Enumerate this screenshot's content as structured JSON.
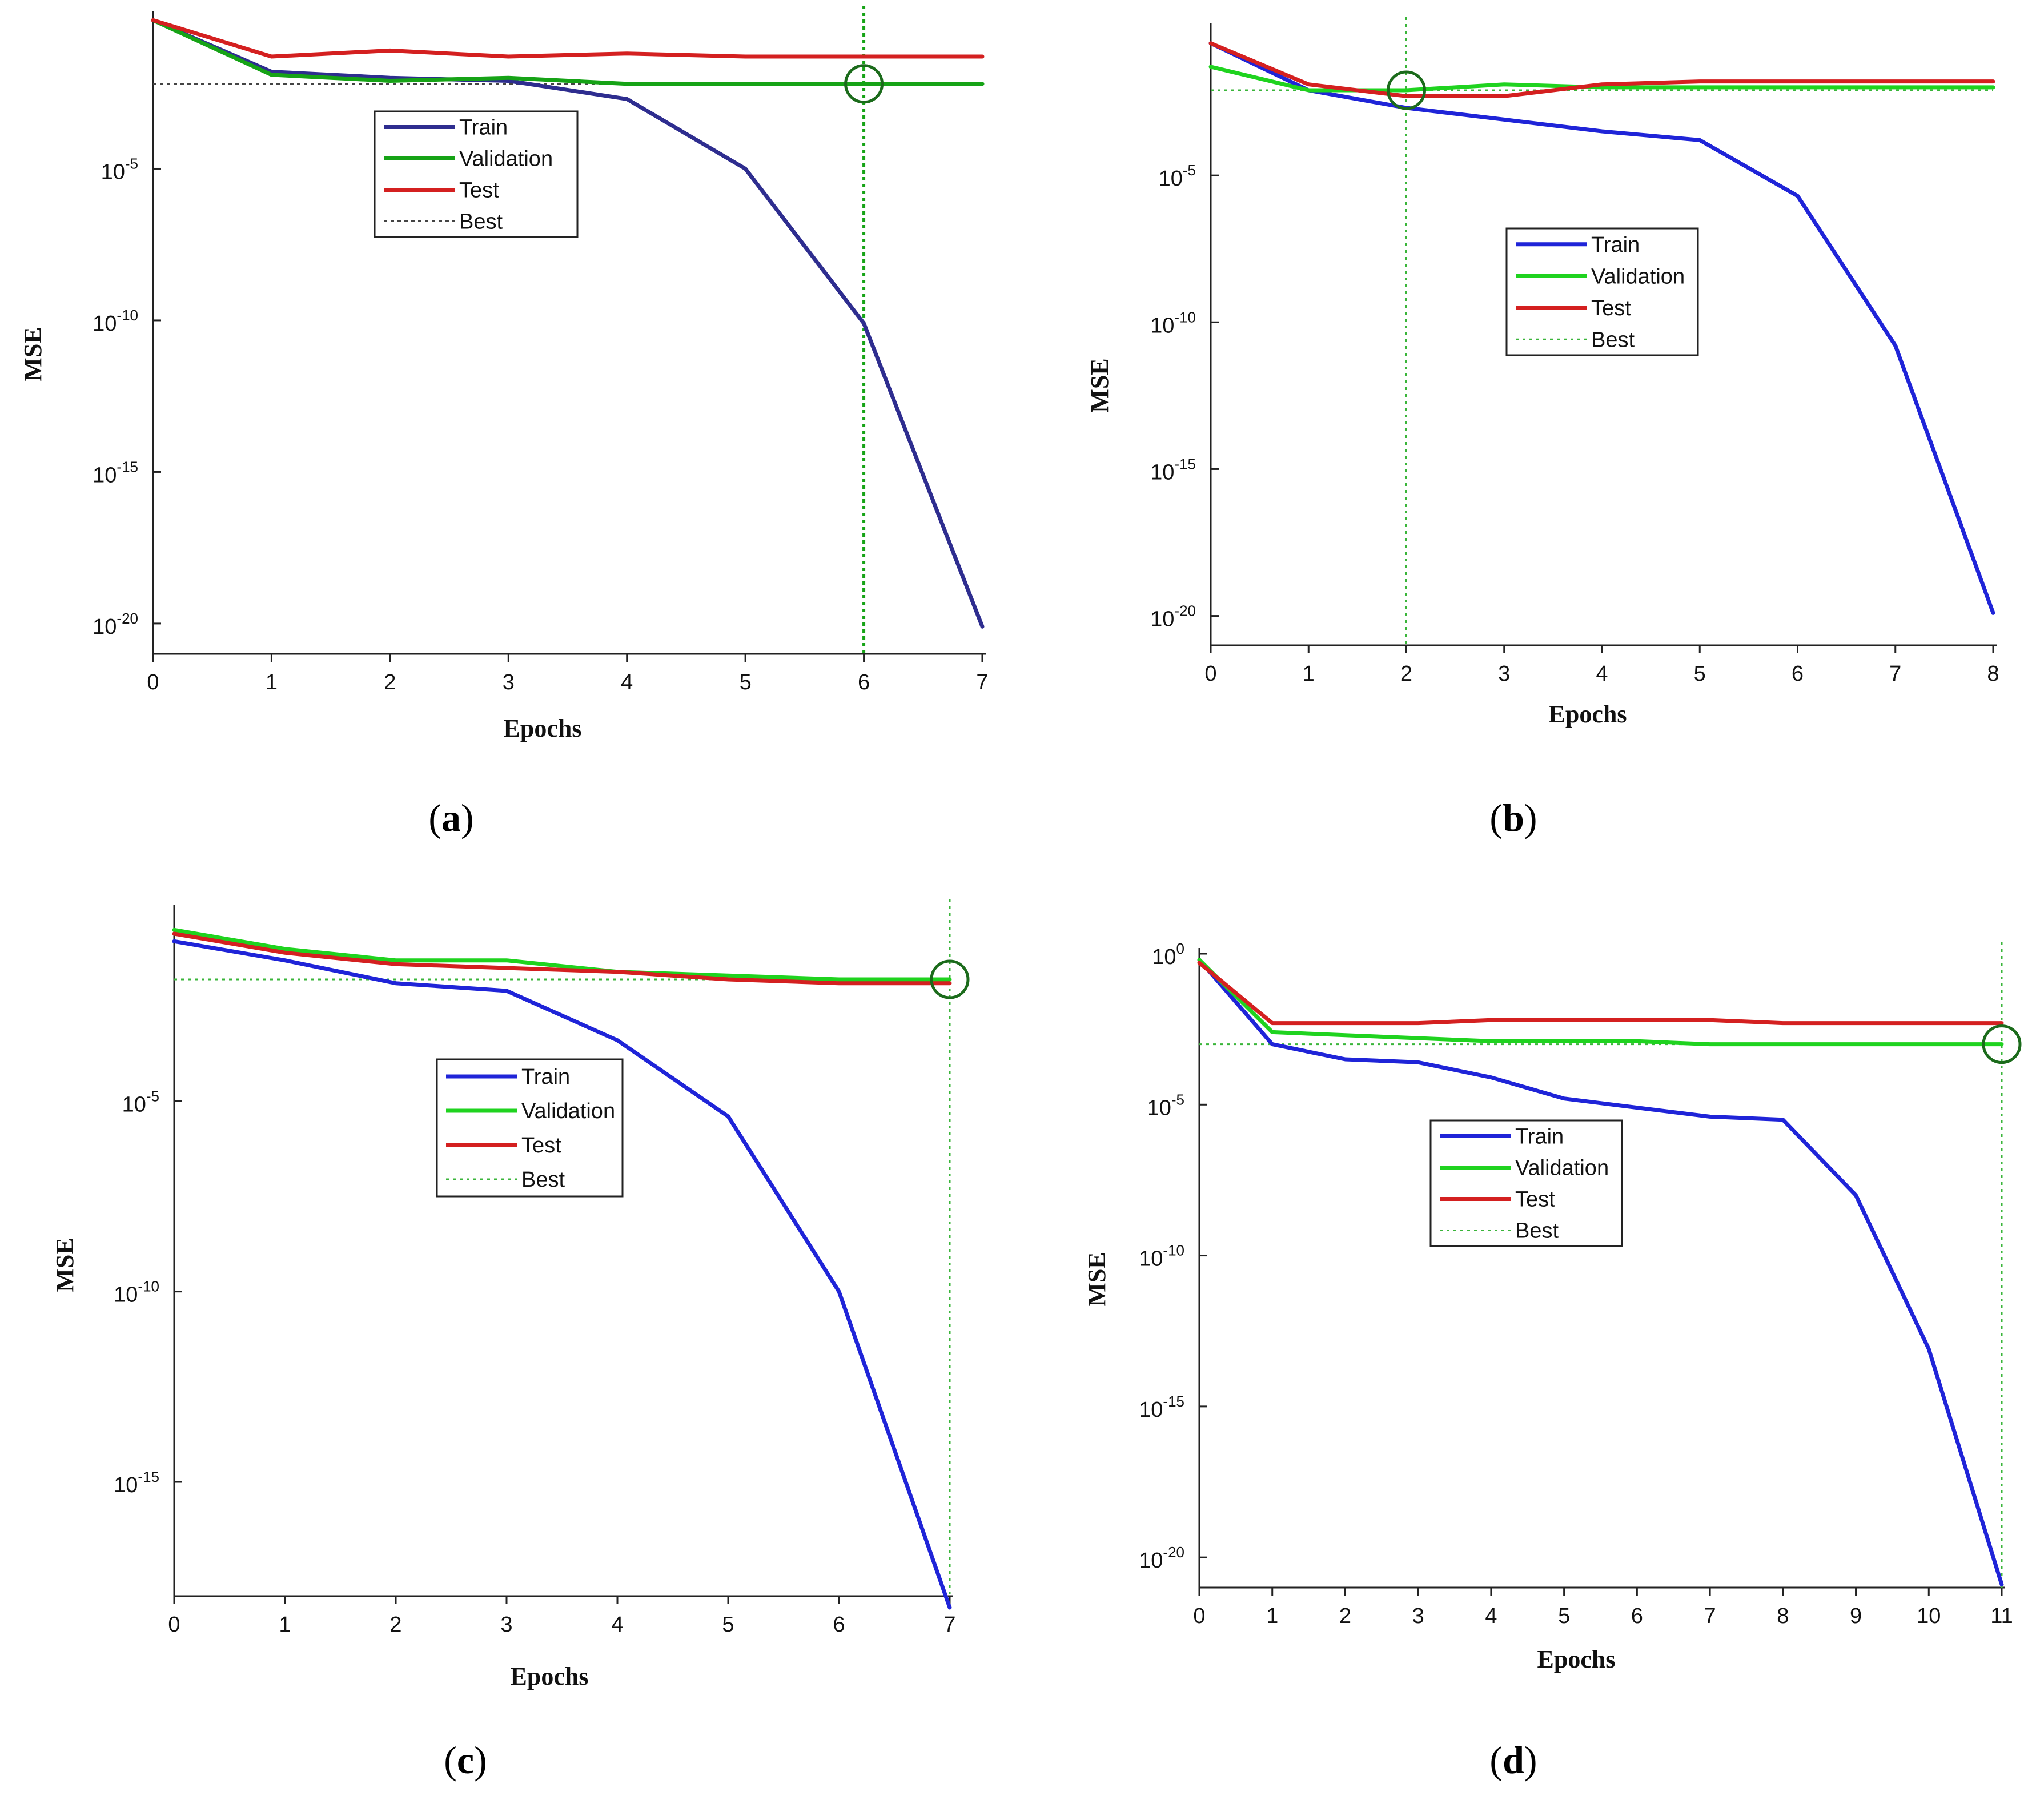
{
  "colors": {
    "train_dark": "#2e2d8f",
    "train_blue": "#1f24d8",
    "validation": "#16a316",
    "validation_bright": "#1fd31f",
    "test": "#d42020",
    "best_dark": "#444444",
    "best_green": "#3ab53a",
    "circle": "#1b6b1b"
  },
  "chart_data": [
    {
      "id": "a",
      "type": "line",
      "caption_letter": "a",
      "xlabel": "Epochs",
      "ylabel": "MSE",
      "xlim": [
        0,
        7
      ],
      "ylim_log10": [
        -21,
        0
      ],
      "x_ticks": [
        "0",
        "1",
        "2",
        "3",
        "4",
        "5",
        "6",
        "7"
      ],
      "y_ticks": [
        {
          "base": "10",
          "exp": "-5",
          "log10": -5
        },
        {
          "base": "10",
          "exp": "-10",
          "log10": -10
        },
        {
          "base": "10",
          "exp": "-15",
          "log10": -15
        },
        {
          "base": "10",
          "exp": "-20",
          "log10": -20
        }
      ],
      "best_epoch": 6,
      "best_log10": -2.2,
      "series": [
        {
          "name": "Train",
          "x": [
            0,
            1,
            2,
            3,
            4,
            5,
            6,
            7
          ],
          "log10": [
            -0.1,
            -1.8,
            -2.0,
            -2.1,
            -2.7,
            -5.0,
            -10.1,
            -20.1
          ]
        },
        {
          "name": "Validation",
          "x": [
            0,
            1,
            2,
            3,
            4,
            5,
            6,
            7
          ],
          "log10": [
            -0.1,
            -1.9,
            -2.1,
            -2.0,
            -2.2,
            -2.2,
            -2.2,
            -2.2
          ]
        },
        {
          "name": "Test",
          "x": [
            0,
            1,
            2,
            3,
            4,
            5,
            6,
            7
          ],
          "log10": [
            -0.1,
            -1.3,
            -1.1,
            -1.3,
            -1.2,
            -1.3,
            -1.3,
            -1.3
          ]
        }
      ],
      "legend": [
        "Train",
        "Validation",
        "Test",
        "Best"
      ]
    },
    {
      "id": "b",
      "type": "line",
      "caption_letter": "b",
      "xlabel": "Epochs",
      "ylabel": "MSE",
      "xlim": [
        0,
        8
      ],
      "ylim_log10": [
        -21,
        0
      ],
      "x_ticks": [
        "0",
        "1",
        "2",
        "3",
        "4",
        "5",
        "6",
        "7",
        "8"
      ],
      "y_ticks": [
        {
          "base": "10",
          "exp": "-5",
          "log10": -5
        },
        {
          "base": "10",
          "exp": "-10",
          "log10": -10
        },
        {
          "base": "10",
          "exp": "-15",
          "log10": -15
        },
        {
          "base": "10",
          "exp": "-20",
          "log10": -20
        }
      ],
      "best_epoch": 2,
      "best_log10": -2.1,
      "series": [
        {
          "name": "Train",
          "x": [
            0,
            1,
            2,
            3,
            4,
            5,
            6,
            7,
            8
          ],
          "log10": [
            -0.5,
            -2.1,
            -2.7,
            -3.1,
            -3.5,
            -3.8,
            -5.7,
            -10.8,
            -19.9
          ]
        },
        {
          "name": "Validation",
          "x": [
            0,
            1,
            2,
            3,
            4,
            5,
            6,
            7,
            8
          ],
          "log10": [
            -1.3,
            -2.1,
            -2.1,
            -1.9,
            -2.0,
            -2.0,
            -2.0,
            -2.0,
            -2.0
          ]
        },
        {
          "name": "Test",
          "x": [
            0,
            1,
            2,
            3,
            4,
            5,
            6,
            7,
            8
          ],
          "log10": [
            -0.5,
            -1.9,
            -2.3,
            -2.3,
            -1.9,
            -1.8,
            -1.8,
            -1.8,
            -1.8
          ]
        }
      ],
      "legend": [
        "Train",
        "Validation",
        "Test",
        "Best"
      ]
    },
    {
      "id": "c",
      "type": "line",
      "caption_letter": "c",
      "xlabel": "Epochs",
      "ylabel": "MSE",
      "xlim": [
        0,
        7
      ],
      "ylim_log10": [
        -18,
        0
      ],
      "x_ticks": [
        "0",
        "1",
        "2",
        "3",
        "4",
        "5",
        "6",
        "7"
      ],
      "y_ticks": [
        {
          "base": "10",
          "exp": "-5",
          "log10": -5
        },
        {
          "base": "10",
          "exp": "-10",
          "log10": -10
        },
        {
          "base": "10",
          "exp": "-15",
          "log10": -15
        }
      ],
      "best_epoch": 7,
      "best_log10": -1.8,
      "series": [
        {
          "name": "Train",
          "x": [
            0,
            1,
            2,
            3,
            4,
            5,
            6,
            7
          ],
          "log10": [
            -0.8,
            -1.3,
            -1.9,
            -2.1,
            -3.4,
            -5.4,
            -10.0,
            -18.3
          ]
        },
        {
          "name": "Validation",
          "x": [
            0,
            1,
            2,
            3,
            4,
            5,
            6,
            7
          ],
          "log10": [
            -0.5,
            -1.0,
            -1.3,
            -1.3,
            -1.6,
            -1.7,
            -1.8,
            -1.8
          ]
        },
        {
          "name": "Test",
          "x": [
            0,
            1,
            2,
            3,
            4,
            5,
            6,
            7
          ],
          "log10": [
            -0.6,
            -1.1,
            -1.4,
            -1.5,
            -1.6,
            -1.8,
            -1.9,
            -1.9
          ]
        }
      ],
      "legend": [
        "Train",
        "Validation",
        "Test",
        "Best"
      ]
    },
    {
      "id": "d",
      "type": "line",
      "caption_letter": "d",
      "xlabel": "Epochs",
      "ylabel": "MSE",
      "xlim": [
        0,
        11
      ],
      "ylim_log10": [
        -21,
        0
      ],
      "x_ticks": [
        "0",
        "1",
        "2",
        "3",
        "4",
        "5",
        "6",
        "7",
        "8",
        "9",
        "10",
        "11"
      ],
      "y_ticks": [
        {
          "base": "10",
          "exp": "0",
          "log10": 0
        },
        {
          "base": "10",
          "exp": "-5",
          "log10": -5
        },
        {
          "base": "10",
          "exp": "-10",
          "log10": -10
        },
        {
          "base": "10",
          "exp": "-15",
          "log10": -15
        },
        {
          "base": "10",
          "exp": "-20",
          "log10": -20
        }
      ],
      "best_epoch": 11,
      "best_log10": -3.0,
      "series": [
        {
          "name": "Train",
          "x": [
            0,
            1,
            2,
            3,
            4,
            5,
            6,
            7,
            8,
            9,
            10,
            11
          ],
          "log10": [
            -0.2,
            -3.0,
            -3.5,
            -3.6,
            -4.1,
            -4.8,
            -5.1,
            -5.4,
            -5.5,
            -8.0,
            -13.1,
            -20.9
          ]
        },
        {
          "name": "Validation",
          "x": [
            0,
            1,
            2,
            3,
            4,
            5,
            6,
            7,
            8,
            9,
            10,
            11
          ],
          "log10": [
            -0.2,
            -2.6,
            -2.7,
            -2.8,
            -2.9,
            -2.9,
            -2.9,
            -3.0,
            -3.0,
            -3.0,
            -3.0,
            -3.0
          ]
        },
        {
          "name": "Test",
          "x": [
            0,
            1,
            2,
            3,
            4,
            5,
            6,
            7,
            8,
            9,
            10,
            11
          ],
          "log10": [
            -0.3,
            -2.3,
            -2.3,
            -2.3,
            -2.2,
            -2.2,
            -2.2,
            -2.2,
            -2.3,
            -2.3,
            -2.3,
            -2.3
          ]
        }
      ],
      "legend": [
        "Train",
        "Validation",
        "Test",
        "Best"
      ]
    }
  ]
}
